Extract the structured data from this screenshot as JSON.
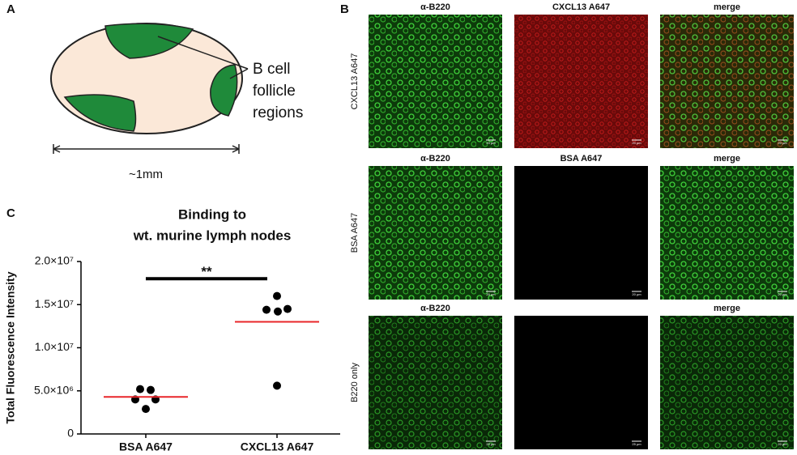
{
  "panel_a": {
    "label": "A",
    "annotation": [
      "B cell",
      "follicle",
      "regions"
    ],
    "scale_label": "~1mm"
  },
  "panel_b": {
    "label": "B",
    "rows": [
      {
        "label": "CXCL13 A647",
        "headers": [
          "α-B220",
          "CXCL13 A647",
          "merge"
        ],
        "scale": [
          "20 µm",
          "20 µm",
          "20 µm"
        ]
      },
      {
        "label": "BSA A647",
        "headers": [
          "α-B220",
          "BSA A647",
          "merge"
        ],
        "scale": [
          "20 µm",
          "20 µm",
          "20 µm"
        ]
      },
      {
        "label": "B220 only",
        "headers": [
          "α-B220",
          null,
          "merge"
        ],
        "scale": [
          "20 µm",
          "25 µm",
          "20 µm"
        ]
      }
    ]
  },
  "chart_data": {
    "type": "dot",
    "panel_label": "C",
    "title": [
      "Binding to",
      "wt. murine lymph nodes"
    ],
    "y_label": "Total Fluorescence Intensity",
    "categories": [
      "BSA A647",
      "CXCL13 A647"
    ],
    "points": [
      [
        5200000,
        5100000,
        4000000,
        4000000,
        2900000
      ],
      [
        16000000,
        14400000,
        14200000,
        14500000,
        5600000
      ]
    ],
    "means": [
      4300000,
      13000000
    ],
    "point_color": "#000000",
    "mean_color": "#e8262a",
    "ylim": [
      0,
      20000000
    ],
    "yticks": [
      0,
      {
        "value": 5000000,
        "label": "5.0×10⁶"
      },
      {
        "value": 10000000,
        "label": "1.0×10⁷"
      },
      {
        "value": 15000000,
        "label": "1.5×10⁷"
      },
      {
        "value": 20000000,
        "label": "2.0×10⁷"
      }
    ],
    "significance": {
      "label": "**",
      "y": 18000000
    }
  }
}
